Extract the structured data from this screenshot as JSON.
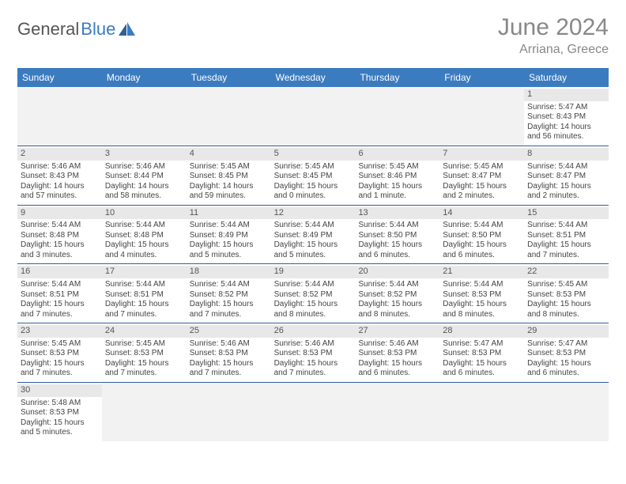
{
  "logo": {
    "text1": "General",
    "text2": "Blue"
  },
  "title": "June 2024",
  "location": "Arriana, Greece",
  "colors": {
    "header_bg": "#3b7bbf",
    "header_text": "#ffffff",
    "row_border": "#2f5f99",
    "daynum_bg": "#e8e8e8",
    "empty_bg": "#f2f2f2",
    "title_color": "#888888",
    "body_text": "#444444"
  },
  "day_headers": [
    "Sunday",
    "Monday",
    "Tuesday",
    "Wednesday",
    "Thursday",
    "Friday",
    "Saturday"
  ],
  "weeks": [
    [
      null,
      null,
      null,
      null,
      null,
      null,
      {
        "n": "1",
        "sr": "Sunrise: 5:47 AM",
        "ss": "Sunset: 8:43 PM",
        "d1": "Daylight: 14 hours",
        "d2": "and 56 minutes."
      }
    ],
    [
      {
        "n": "2",
        "sr": "Sunrise: 5:46 AM",
        "ss": "Sunset: 8:43 PM",
        "d1": "Daylight: 14 hours",
        "d2": "and 57 minutes."
      },
      {
        "n": "3",
        "sr": "Sunrise: 5:46 AM",
        "ss": "Sunset: 8:44 PM",
        "d1": "Daylight: 14 hours",
        "d2": "and 58 minutes."
      },
      {
        "n": "4",
        "sr": "Sunrise: 5:45 AM",
        "ss": "Sunset: 8:45 PM",
        "d1": "Daylight: 14 hours",
        "d2": "and 59 minutes."
      },
      {
        "n": "5",
        "sr": "Sunrise: 5:45 AM",
        "ss": "Sunset: 8:45 PM",
        "d1": "Daylight: 15 hours",
        "d2": "and 0 minutes."
      },
      {
        "n": "6",
        "sr": "Sunrise: 5:45 AM",
        "ss": "Sunset: 8:46 PM",
        "d1": "Daylight: 15 hours",
        "d2": "and 1 minute."
      },
      {
        "n": "7",
        "sr": "Sunrise: 5:45 AM",
        "ss": "Sunset: 8:47 PM",
        "d1": "Daylight: 15 hours",
        "d2": "and 2 minutes."
      },
      {
        "n": "8",
        "sr": "Sunrise: 5:44 AM",
        "ss": "Sunset: 8:47 PM",
        "d1": "Daylight: 15 hours",
        "d2": "and 2 minutes."
      }
    ],
    [
      {
        "n": "9",
        "sr": "Sunrise: 5:44 AM",
        "ss": "Sunset: 8:48 PM",
        "d1": "Daylight: 15 hours",
        "d2": "and 3 minutes."
      },
      {
        "n": "10",
        "sr": "Sunrise: 5:44 AM",
        "ss": "Sunset: 8:48 PM",
        "d1": "Daylight: 15 hours",
        "d2": "and 4 minutes."
      },
      {
        "n": "11",
        "sr": "Sunrise: 5:44 AM",
        "ss": "Sunset: 8:49 PM",
        "d1": "Daylight: 15 hours",
        "d2": "and 5 minutes."
      },
      {
        "n": "12",
        "sr": "Sunrise: 5:44 AM",
        "ss": "Sunset: 8:49 PM",
        "d1": "Daylight: 15 hours",
        "d2": "and 5 minutes."
      },
      {
        "n": "13",
        "sr": "Sunrise: 5:44 AM",
        "ss": "Sunset: 8:50 PM",
        "d1": "Daylight: 15 hours",
        "d2": "and 6 minutes."
      },
      {
        "n": "14",
        "sr": "Sunrise: 5:44 AM",
        "ss": "Sunset: 8:50 PM",
        "d1": "Daylight: 15 hours",
        "d2": "and 6 minutes."
      },
      {
        "n": "15",
        "sr": "Sunrise: 5:44 AM",
        "ss": "Sunset: 8:51 PM",
        "d1": "Daylight: 15 hours",
        "d2": "and 7 minutes."
      }
    ],
    [
      {
        "n": "16",
        "sr": "Sunrise: 5:44 AM",
        "ss": "Sunset: 8:51 PM",
        "d1": "Daylight: 15 hours",
        "d2": "and 7 minutes."
      },
      {
        "n": "17",
        "sr": "Sunrise: 5:44 AM",
        "ss": "Sunset: 8:51 PM",
        "d1": "Daylight: 15 hours",
        "d2": "and 7 minutes."
      },
      {
        "n": "18",
        "sr": "Sunrise: 5:44 AM",
        "ss": "Sunset: 8:52 PM",
        "d1": "Daylight: 15 hours",
        "d2": "and 7 minutes."
      },
      {
        "n": "19",
        "sr": "Sunrise: 5:44 AM",
        "ss": "Sunset: 8:52 PM",
        "d1": "Daylight: 15 hours",
        "d2": "and 8 minutes."
      },
      {
        "n": "20",
        "sr": "Sunrise: 5:44 AM",
        "ss": "Sunset: 8:52 PM",
        "d1": "Daylight: 15 hours",
        "d2": "and 8 minutes."
      },
      {
        "n": "21",
        "sr": "Sunrise: 5:44 AM",
        "ss": "Sunset: 8:53 PM",
        "d1": "Daylight: 15 hours",
        "d2": "and 8 minutes."
      },
      {
        "n": "22",
        "sr": "Sunrise: 5:45 AM",
        "ss": "Sunset: 8:53 PM",
        "d1": "Daylight: 15 hours",
        "d2": "and 8 minutes."
      }
    ],
    [
      {
        "n": "23",
        "sr": "Sunrise: 5:45 AM",
        "ss": "Sunset: 8:53 PM",
        "d1": "Daylight: 15 hours",
        "d2": "and 7 minutes."
      },
      {
        "n": "24",
        "sr": "Sunrise: 5:45 AM",
        "ss": "Sunset: 8:53 PM",
        "d1": "Daylight: 15 hours",
        "d2": "and 7 minutes."
      },
      {
        "n": "25",
        "sr": "Sunrise: 5:46 AM",
        "ss": "Sunset: 8:53 PM",
        "d1": "Daylight: 15 hours",
        "d2": "and 7 minutes."
      },
      {
        "n": "26",
        "sr": "Sunrise: 5:46 AM",
        "ss": "Sunset: 8:53 PM",
        "d1": "Daylight: 15 hours",
        "d2": "and 7 minutes."
      },
      {
        "n": "27",
        "sr": "Sunrise: 5:46 AM",
        "ss": "Sunset: 8:53 PM",
        "d1": "Daylight: 15 hours",
        "d2": "and 6 minutes."
      },
      {
        "n": "28",
        "sr": "Sunrise: 5:47 AM",
        "ss": "Sunset: 8:53 PM",
        "d1": "Daylight: 15 hours",
        "d2": "and 6 minutes."
      },
      {
        "n": "29",
        "sr": "Sunrise: 5:47 AM",
        "ss": "Sunset: 8:53 PM",
        "d1": "Daylight: 15 hours",
        "d2": "and 6 minutes."
      }
    ],
    [
      {
        "n": "30",
        "sr": "Sunrise: 5:48 AM",
        "ss": "Sunset: 8:53 PM",
        "d1": "Daylight: 15 hours",
        "d2": "and 5 minutes."
      },
      null,
      null,
      null,
      null,
      null,
      null
    ]
  ]
}
